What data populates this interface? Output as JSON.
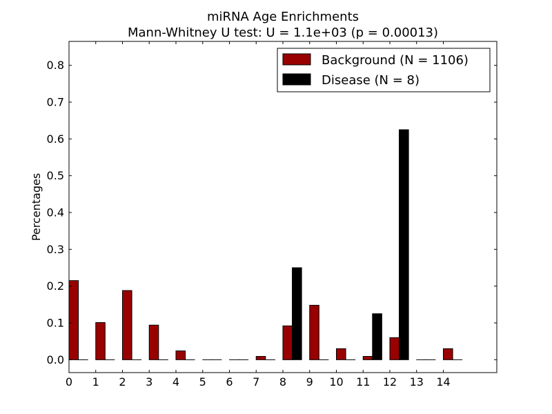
{
  "chart_data": {
    "type": "bar",
    "title": "miRNA Age Enrichments",
    "subtitle": "Mann-Whitney U test: U = 1.1e+03 (p = 0.00013)",
    "xlabel": "",
    "ylabel": "Percentages",
    "categories": [
      0,
      1,
      2,
      3,
      4,
      5,
      6,
      7,
      8,
      9,
      10,
      11,
      12,
      13,
      14
    ],
    "x_tick_labels": [
      "0",
      "1",
      "2",
      "3",
      "4",
      "5",
      "6",
      "7",
      "8",
      "9",
      "10",
      "11",
      "12",
      "13",
      "14"
    ],
    "y_tick_labels": [
      "0.0",
      "0.1",
      "0.2",
      "0.3",
      "0.4",
      "0.5",
      "0.6",
      "0.7",
      "0.8"
    ],
    "y_ticks": [
      0.0,
      0.1,
      0.2,
      0.3,
      0.4,
      0.5,
      0.6,
      0.7,
      0.8
    ],
    "xlim": [
      0,
      16
    ],
    "ylim": [
      -0.035,
      0.865
    ],
    "bar_width": 0.35,
    "grid": false,
    "legend_position": "top-right",
    "series": [
      {
        "name": "Background (N = 1106)",
        "color": "#990000",
        "values": [
          0.215,
          0.101,
          0.188,
          0.094,
          0.024,
          0.0,
          0.0,
          0.009,
          0.092,
          0.148,
          0.03,
          0.009,
          0.06,
          0.0,
          0.03
        ]
      },
      {
        "name": "Disease (N = 8)",
        "color": "#000000",
        "values": [
          0.0,
          0.0,
          0.0,
          0.0,
          0.0,
          0.0,
          0.0,
          0.0,
          0.25,
          0.0,
          0.0,
          0.125,
          0.625,
          0.0,
          0.0
        ]
      }
    ]
  }
}
